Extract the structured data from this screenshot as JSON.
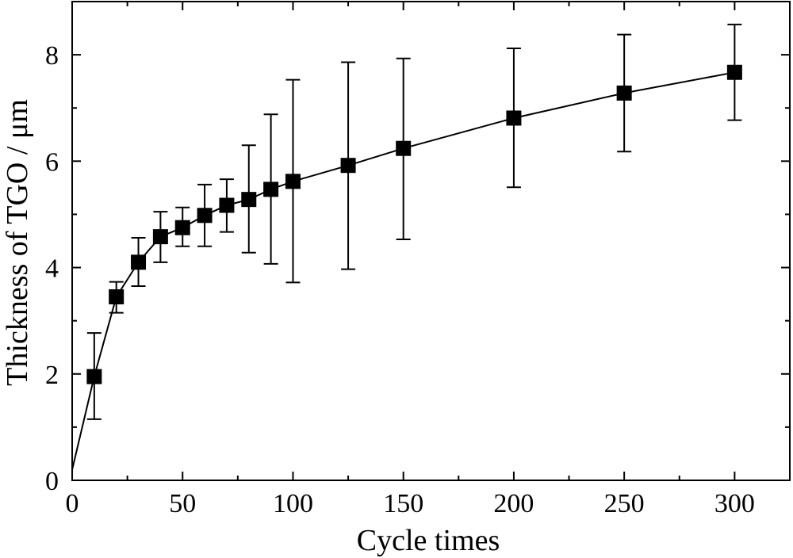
{
  "chart_data": {
    "type": "scatter",
    "title": "",
    "xlabel": "Cycle times",
    "ylabel": "Thickness of TGO / μm",
    "xlim": [
      0,
      325
    ],
    "ylim": [
      0,
      9
    ],
    "x_ticks": [
      0,
      50,
      100,
      150,
      200,
      250,
      300
    ],
    "x_tick_labels": [
      "0",
      "50",
      "100",
      "150",
      "200",
      "250",
      "300"
    ],
    "y_ticks": [
      0,
      2,
      4,
      6,
      8
    ],
    "y_tick_labels": [
      "0",
      "2",
      "4",
      "6",
      "8"
    ],
    "grid": false,
    "legend": "none",
    "marker": "square",
    "line_color": "#000000",
    "series": [
      {
        "x": [
          0,
          10,
          20,
          30,
          40,
          50,
          60,
          70,
          80,
          90,
          100,
          125,
          150,
          200,
          250,
          300
        ],
        "y": [
          0.2,
          1.95,
          3.45,
          4.1,
          4.58,
          4.75,
          4.98,
          5.17,
          5.28,
          5.47,
          5.62,
          5.92,
          6.24,
          6.81,
          7.28,
          7.67
        ],
        "markers": [
          false,
          true,
          true,
          true,
          true,
          true,
          true,
          true,
          true,
          true,
          true,
          true,
          true,
          true,
          true,
          true
        ],
        "err_low": [
          null,
          1.15,
          3.15,
          3.65,
          4.1,
          4.4,
          4.4,
          4.67,
          4.28,
          4.07,
          3.72,
          3.97,
          4.53,
          5.51,
          6.18,
          6.77
        ],
        "err_high": [
          null,
          2.77,
          3.73,
          4.56,
          5.05,
          5.13,
          5.56,
          5.66,
          6.3,
          6.88,
          7.53,
          7.86,
          7.93,
          8.12,
          8.38,
          8.57
        ]
      }
    ]
  }
}
